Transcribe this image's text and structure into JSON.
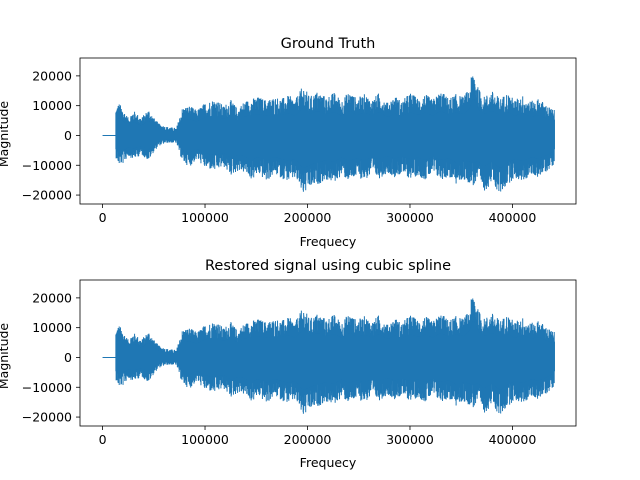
{
  "colors": {
    "series": "#1f77b4",
    "axes": "#000000",
    "background": "#ffffff"
  },
  "chart_data": [
    {
      "type": "line",
      "title": "Ground Truth",
      "xlabel": "Frequecy",
      "ylabel": "Magnitude",
      "xlim": [
        -22000,
        462000
      ],
      "ylim": [
        -23000,
        26000
      ],
      "xticks": [
        0,
        100000,
        200000,
        300000,
        400000
      ],
      "xtick_labels": [
        "0",
        "100000",
        "200000",
        "300000",
        "400000"
      ],
      "yticks": [
        20000,
        10000,
        0,
        -10000,
        -20000
      ],
      "ytick_labels": [
        "20000",
        "10000",
        "0",
        "−10000",
        "−20000"
      ],
      "series_name": "Ground Truth",
      "x_range": [
        0,
        441000
      ],
      "silent_until": 13000,
      "envelope_upper": [
        [
          13000,
          9500
        ],
        [
          16000,
          11000
        ],
        [
          20000,
          9000
        ],
        [
          25000,
          6000
        ],
        [
          30000,
          8500
        ],
        [
          38000,
          6000
        ],
        [
          45000,
          9000
        ],
        [
          50000,
          6000
        ],
        [
          55000,
          4000
        ],
        [
          62000,
          3000
        ],
        [
          72000,
          2500
        ],
        [
          78000,
          9500
        ],
        [
          85000,
          10000
        ],
        [
          92000,
          8500
        ],
        [
          100000,
          11000
        ],
        [
          110000,
          12500
        ],
        [
          118000,
          10000
        ],
        [
          125000,
          12000
        ],
        [
          132000,
          9000
        ],
        [
          138000,
          11500
        ],
        [
          146000,
          12500
        ],
        [
          152000,
          13000
        ],
        [
          160000,
          12000
        ],
        [
          168000,
          13000
        ],
        [
          175000,
          12500
        ],
        [
          182000,
          13500
        ],
        [
          188000,
          12000
        ],
        [
          196000,
          17000
        ],
        [
          202000,
          13000
        ],
        [
          210000,
          15000
        ],
        [
          218000,
          13000
        ],
        [
          226000,
          14500
        ],
        [
          233000,
          12000
        ],
        [
          241000,
          15000
        ],
        [
          248000,
          12500
        ],
        [
          256000,
          14000
        ],
        [
          263000,
          12000
        ],
        [
          270000,
          14500
        ],
        [
          278000,
          11000
        ],
        [
          285000,
          13500
        ],
        [
          292000,
          11500
        ],
        [
          300000,
          14500
        ],
        [
          308000,
          12500
        ],
        [
          315000,
          14000
        ],
        [
          322000,
          12000
        ],
        [
          330000,
          15000
        ],
        [
          338000,
          12500
        ],
        [
          345000,
          14000
        ],
        [
          352000,
          13000
        ],
        [
          358000,
          16000
        ],
        [
          362000,
          24000
        ],
        [
          366000,
          16500
        ],
        [
          372000,
          13000
        ],
        [
          380000,
          15000
        ],
        [
          388000,
          12500
        ],
        [
          395000,
          14500
        ],
        [
          402000,
          12000
        ],
        [
          410000,
          13500
        ],
        [
          418000,
          11500
        ],
        [
          426000,
          12500
        ],
        [
          434000,
          10000
        ],
        [
          441000,
          8500
        ]
      ],
      "envelope_lower": [
        [
          13000,
          -7500
        ],
        [
          16000,
          -10000
        ],
        [
          20000,
          -9500
        ],
        [
          25000,
          -7000
        ],
        [
          30000,
          -8000
        ],
        [
          38000,
          -6500
        ],
        [
          45000,
          -8500
        ],
        [
          50000,
          -5500
        ],
        [
          55000,
          -3500
        ],
        [
          62000,
          -2500
        ],
        [
          72000,
          -2500
        ],
        [
          78000,
          -9000
        ],
        [
          85000,
          -10500
        ],
        [
          92000,
          -8000
        ],
        [
          100000,
          -11000
        ],
        [
          110000,
          -12000
        ],
        [
          118000,
          -10500
        ],
        [
          125000,
          -13500
        ],
        [
          132000,
          -12000
        ],
        [
          138000,
          -12500
        ],
        [
          146000,
          -15000
        ],
        [
          152000,
          -13000
        ],
        [
          160000,
          -15500
        ],
        [
          168000,
          -13000
        ],
        [
          175000,
          -14500
        ],
        [
          182000,
          -15500
        ],
        [
          188000,
          -14500
        ],
        [
          196000,
          -20000
        ],
        [
          202000,
          -18000
        ],
        [
          210000,
          -16500
        ],
        [
          218000,
          -15000
        ],
        [
          226000,
          -16000
        ],
        [
          233000,
          -13500
        ],
        [
          241000,
          -15500
        ],
        [
          248000,
          -14000
        ],
        [
          256000,
          -15000
        ],
        [
          263000,
          -13500
        ],
        [
          270000,
          -14500
        ],
        [
          278000,
          -12500
        ],
        [
          285000,
          -14000
        ],
        [
          292000,
          -13000
        ],
        [
          300000,
          -14500
        ],
        [
          308000,
          -13500
        ],
        [
          315000,
          -15000
        ],
        [
          322000,
          -13000
        ],
        [
          330000,
          -15000
        ],
        [
          338000,
          -14000
        ],
        [
          345000,
          -16500
        ],
        [
          352000,
          -15000
        ],
        [
          358000,
          -16000
        ],
        [
          362000,
          -17000
        ],
        [
          366000,
          -15500
        ],
        [
          372000,
          -19000
        ],
        [
          380000,
          -16000
        ],
        [
          388000,
          -20000
        ],
        [
          395000,
          -16500
        ],
        [
          402000,
          -14500
        ],
        [
          410000,
          -15500
        ],
        [
          418000,
          -13500
        ],
        [
          426000,
          -14000
        ],
        [
          434000,
          -12000
        ],
        [
          441000,
          -9500
        ]
      ]
    },
    {
      "type": "line",
      "title": "Restored signal using cubic spline",
      "xlabel": "Frequecy",
      "ylabel": "Magnitude",
      "xlim": [
        -22000,
        462000
      ],
      "ylim": [
        -23000,
        26000
      ],
      "xticks": [
        0,
        100000,
        200000,
        300000,
        400000
      ],
      "xtick_labels": [
        "0",
        "100000",
        "200000",
        "300000",
        "400000"
      ],
      "yticks": [
        20000,
        10000,
        0,
        -10000,
        -20000
      ],
      "ytick_labels": [
        "20000",
        "10000",
        "0",
        "−10000",
        "−20000"
      ],
      "series_name": "Restored signal",
      "x_range": [
        0,
        441000
      ],
      "silent_until": 13000,
      "envelope_upper": [
        [
          13000,
          9500
        ],
        [
          16000,
          11000
        ],
        [
          20000,
          9000
        ],
        [
          25000,
          6000
        ],
        [
          30000,
          8500
        ],
        [
          38000,
          6000
        ],
        [
          45000,
          9000
        ],
        [
          50000,
          6000
        ],
        [
          55000,
          4000
        ],
        [
          62000,
          3000
        ],
        [
          72000,
          2500
        ],
        [
          78000,
          9500
        ],
        [
          85000,
          10000
        ],
        [
          92000,
          8500
        ],
        [
          100000,
          11000
        ],
        [
          110000,
          12500
        ],
        [
          118000,
          10000
        ],
        [
          125000,
          12000
        ],
        [
          132000,
          9000
        ],
        [
          138000,
          11500
        ],
        [
          146000,
          12500
        ],
        [
          152000,
          13000
        ],
        [
          160000,
          12000
        ],
        [
          168000,
          13000
        ],
        [
          175000,
          12500
        ],
        [
          182000,
          13500
        ],
        [
          188000,
          12000
        ],
        [
          196000,
          17000
        ],
        [
          202000,
          13000
        ],
        [
          210000,
          15000
        ],
        [
          218000,
          13000
        ],
        [
          226000,
          14500
        ],
        [
          233000,
          12000
        ],
        [
          241000,
          15000
        ],
        [
          248000,
          12500
        ],
        [
          256000,
          14000
        ],
        [
          263000,
          12000
        ],
        [
          270000,
          14500
        ],
        [
          278000,
          11000
        ],
        [
          285000,
          13500
        ],
        [
          292000,
          11500
        ],
        [
          300000,
          14500
        ],
        [
          308000,
          12500
        ],
        [
          315000,
          14000
        ],
        [
          322000,
          12000
        ],
        [
          330000,
          15000
        ],
        [
          338000,
          12500
        ],
        [
          345000,
          14000
        ],
        [
          352000,
          13000
        ],
        [
          358000,
          16000
        ],
        [
          362000,
          24000
        ],
        [
          366000,
          16500
        ],
        [
          372000,
          13000
        ],
        [
          380000,
          15000
        ],
        [
          388000,
          12500
        ],
        [
          395000,
          14500
        ],
        [
          402000,
          12000
        ],
        [
          410000,
          13500
        ],
        [
          418000,
          11500
        ],
        [
          426000,
          12500
        ],
        [
          434000,
          10000
        ],
        [
          441000,
          8500
        ]
      ],
      "envelope_lower": [
        [
          13000,
          -7500
        ],
        [
          16000,
          -10000
        ],
        [
          20000,
          -9500
        ],
        [
          25000,
          -7000
        ],
        [
          30000,
          -8000
        ],
        [
          38000,
          -6500
        ],
        [
          45000,
          -8500
        ],
        [
          50000,
          -5500
        ],
        [
          55000,
          -3500
        ],
        [
          62000,
          -2500
        ],
        [
          72000,
          -2500
        ],
        [
          78000,
          -9000
        ],
        [
          85000,
          -10500
        ],
        [
          92000,
          -8000
        ],
        [
          100000,
          -11000
        ],
        [
          110000,
          -12000
        ],
        [
          118000,
          -10500
        ],
        [
          125000,
          -13500
        ],
        [
          132000,
          -12000
        ],
        [
          138000,
          -12500
        ],
        [
          146000,
          -15000
        ],
        [
          152000,
          -13000
        ],
        [
          160000,
          -15500
        ],
        [
          168000,
          -13000
        ],
        [
          175000,
          -14500
        ],
        [
          182000,
          -15500
        ],
        [
          188000,
          -14500
        ],
        [
          196000,
          -20000
        ],
        [
          202000,
          -18000
        ],
        [
          210000,
          -16500
        ],
        [
          218000,
          -15000
        ],
        [
          226000,
          -16000
        ],
        [
          233000,
          -13500
        ],
        [
          241000,
          -15500
        ],
        [
          248000,
          -14000
        ],
        [
          256000,
          -15000
        ],
        [
          263000,
          -13500
        ],
        [
          270000,
          -14500
        ],
        [
          278000,
          -12500
        ],
        [
          285000,
          -14000
        ],
        [
          292000,
          -13000
        ],
        [
          300000,
          -14500
        ],
        [
          308000,
          -13500
        ],
        [
          315000,
          -15000
        ],
        [
          322000,
          -13000
        ],
        [
          330000,
          -15000
        ],
        [
          338000,
          -14000
        ],
        [
          345000,
          -16500
        ],
        [
          352000,
          -15000
        ],
        [
          358000,
          -16000
        ],
        [
          362000,
          -17000
        ],
        [
          366000,
          -15500
        ],
        [
          372000,
          -19000
        ],
        [
          380000,
          -16000
        ],
        [
          388000,
          -20000
        ],
        [
          395000,
          -16500
        ],
        [
          402000,
          -14500
        ],
        [
          410000,
          -15500
        ],
        [
          418000,
          -13500
        ],
        [
          426000,
          -14000
        ],
        [
          434000,
          -12000
        ],
        [
          441000,
          -9500
        ]
      ]
    }
  ]
}
